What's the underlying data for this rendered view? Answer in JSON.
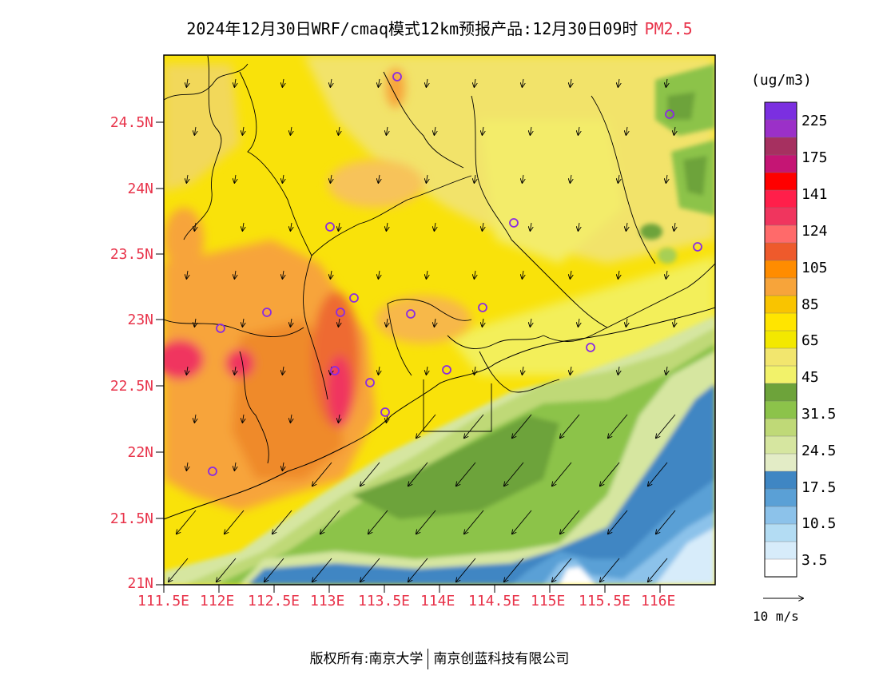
{
  "title": {
    "text": "2024年12月30日WRF/cmaq模式12km预报产品:12月30日09时",
    "species": "PM2.5"
  },
  "axes": {
    "lat_labels": [
      "24.5N",
      "24N",
      "23.5N",
      "23N",
      "22.5N",
      "22N",
      "21.5N",
      "21N"
    ],
    "lon_labels": [
      "111.5E",
      "112E",
      "112.5E",
      "113E",
      "113.5E",
      "114E",
      "114.5E",
      "115E",
      "115.5E",
      "116E"
    ]
  },
  "colorbar": {
    "unit": "(ug/m3)",
    "labels": [
      "225",
      "175",
      "141",
      "124",
      "105",
      "85",
      "65",
      "45",
      "31.5",
      "24.5",
      "17.5",
      "10.5",
      "3.5"
    ],
    "colors": [
      "#7b2fe0",
      "#9b30c8",
      "#a63060",
      "#c51574",
      "#ff0000",
      "#ff1f4a",
      "#f0355e",
      "#ff6a6a",
      "#ee5a2c",
      "#ff8c00",
      "#f7a43a",
      "#f9c400",
      "#ffe500",
      "#f3e800",
      "#f2e66e",
      "#f2f26a",
      "#6da33a",
      "#8cc34a",
      "#bfd977",
      "#d6e6a0",
      "#e3ecc6",
      "#3f86c3",
      "#5aa0d6",
      "#8cc2ea",
      "#b3dcf3",
      "#d7ecfa",
      "#ffffff"
    ]
  },
  "wind_ref": {
    "label": "10 m/s"
  },
  "footer": {
    "copyright": "版权所有:南京大学",
    "company": "南京创蓝科技有限公司"
  }
}
